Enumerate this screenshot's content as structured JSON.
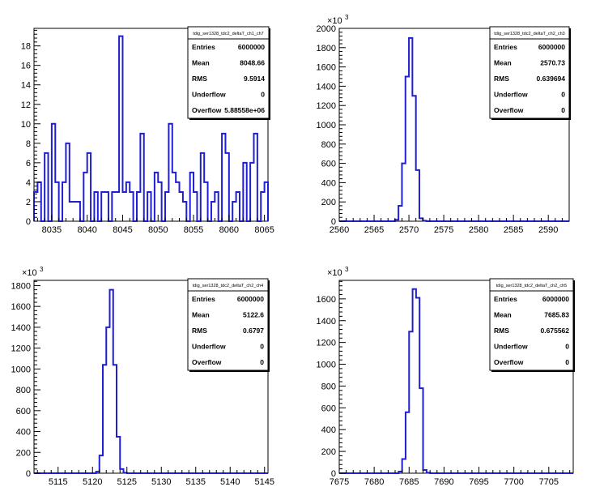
{
  "chart_data": [
    {
      "type": "bar",
      "name": "tdig_ser1328_tdc2_deltaT_ch1_ch7",
      "xlim": [
        8032.5,
        8065.5
      ],
      "ylim": [
        0,
        19.8
      ],
      "xticks": [
        8035,
        8040,
        8045,
        8050,
        8055,
        8060,
        8065
      ],
      "yticks": [
        0,
        2,
        4,
        6,
        8,
        10,
        12,
        14,
        16,
        18
      ],
      "y_multiplier": "",
      "bin_width": 0.5,
      "x": [
        8032.5,
        8033,
        8033.5,
        8034,
        8034.5,
        8035,
        8035.5,
        8036,
        8036.5,
        8037,
        8037.5,
        8038,
        8038.5,
        8039,
        8039.5,
        8040,
        8040.5,
        8041,
        8041.5,
        8042,
        8042.5,
        8043,
        8043.5,
        8044,
        8044.5,
        8045,
        8045.5,
        8046,
        8046.5,
        8047,
        8047.5,
        8048,
        8048.5,
        8049,
        8049.5,
        8050,
        8050.5,
        8051,
        8051.5,
        8052,
        8052.5,
        8053,
        8053.5,
        8054,
        8054.5,
        8055,
        8055.5,
        8056,
        8056.5,
        8057,
        8057.5,
        8058,
        8058.5,
        8059,
        8059.5,
        8060,
        8060.5,
        8061,
        8061.5,
        8062,
        8062.5,
        8063,
        8063.5,
        8064,
        8064.5,
        8065
      ],
      "values": [
        3,
        4,
        0,
        7,
        0,
        10,
        4,
        0,
        4,
        8,
        2,
        2,
        2,
        0,
        5,
        7,
        0,
        3,
        0,
        3,
        3,
        0,
        3,
        3,
        19,
        3,
        4,
        3,
        0,
        3,
        9,
        0,
        3,
        0,
        5,
        4,
        0,
        3,
        10,
        5,
        4,
        3,
        2,
        0,
        5,
        3,
        0,
        7,
        4,
        0,
        2,
        3,
        0,
        9,
        7,
        0,
        2,
        3,
        0,
        6,
        0,
        6,
        9,
        0,
        3,
        4
      ],
      "stats": {
        "title": "tdig_ser1328_tdc2_deltaT_ch1_ch7",
        "rows": [
          {
            "label": "Entries",
            "value": "6000000"
          },
          {
            "label": "Mean",
            "value": "8048.66"
          },
          {
            "label": "RMS",
            "value": "9.5914"
          },
          {
            "label": "Underflow",
            "value": "0"
          },
          {
            "label": "Overflow",
            "value": "5.88558e+06"
          }
        ]
      }
    },
    {
      "type": "bar",
      "name": "tdig_ser1328_tdc2_deltaT_ch2_ch3",
      "xlim": [
        2560,
        2593
      ],
      "ylim": [
        0,
        2000
      ],
      "xticks": [
        2560,
        2565,
        2570,
        2575,
        2580,
        2585,
        2590
      ],
      "yticks": [
        0,
        200,
        400,
        600,
        800,
        1000,
        1200,
        1400,
        1600,
        1800,
        2000
      ],
      "y_multiplier": "10",
      "y_exponent": "3",
      "bin_width": 0.5,
      "x": [
        2568,
        2568.5,
        2569,
        2569.5,
        2570,
        2570.5,
        2571,
        2571.5,
        2572
      ],
      "values": [
        15,
        160,
        600,
        1500,
        1900,
        1300,
        530,
        30,
        5
      ],
      "stats": {
        "title": "tdig_ser1328_tdc2_deltaT_ch2_ch3",
        "rows": [
          {
            "label": "Entries",
            "value": "6000000"
          },
          {
            "label": "Mean",
            "value": "2570.73"
          },
          {
            "label": "RMS",
            "value": "0.639694"
          },
          {
            "label": "Underflow",
            "value": "0"
          },
          {
            "label": "Overflow",
            "value": "0"
          }
        ]
      }
    },
    {
      "type": "bar",
      "name": "tdig_ser1328_tdc2_deltaT_ch2_ch4",
      "xlim": [
        5111.5,
        5145.5
      ],
      "ylim": [
        0,
        1850
      ],
      "xticks": [
        5115,
        5120,
        5125,
        5130,
        5135,
        5140,
        5145
      ],
      "yticks": [
        0,
        200,
        400,
        600,
        800,
        1000,
        1200,
        1400,
        1600,
        1800
      ],
      "y_multiplier": "10",
      "y_exponent": "3",
      "bin_width": 0.5,
      "x": [
        5120.5,
        5121,
        5121.5,
        5122,
        5122.5,
        5123,
        5123.5,
        5124,
        5124.5
      ],
      "values": [
        15,
        170,
        1040,
        1400,
        1760,
        1040,
        350,
        40,
        5
      ],
      "stats": {
        "title": "tdig_ser1328_tdc2_deltaT_ch2_ch4",
        "rows": [
          {
            "label": "Entries",
            "value": "6000000"
          },
          {
            "label": "Mean",
            "value": "5122.6"
          },
          {
            "label": "RMS",
            "value": "0.6797"
          },
          {
            "label": "Underflow",
            "value": "0"
          },
          {
            "label": "Overflow",
            "value": "0"
          }
        ]
      }
    },
    {
      "type": "bar",
      "name": "tdig_ser1328_tdc2_deltaT_ch2_ch5",
      "xlim": [
        7675,
        7708.5
      ],
      "ylim": [
        0,
        1770
      ],
      "xticks": [
        7675,
        7680,
        7685,
        7690,
        7695,
        7700,
        7705
      ],
      "yticks": [
        0,
        200,
        400,
        600,
        800,
        1000,
        1200,
        1400,
        1600
      ],
      "y_multiplier": "10",
      "y_exponent": "3",
      "bin_width": 0.5,
      "x": [
        7683.5,
        7684,
        7684.5,
        7685,
        7685.5,
        7686,
        7686.5,
        7687,
        7687.5
      ],
      "values": [
        15,
        130,
        560,
        1300,
        1690,
        1610,
        780,
        30,
        5
      ],
      "stats": {
        "title": "tdig_ser1328_tdc2_deltaT_ch2_ch5",
        "rows": [
          {
            "label": "Entries",
            "value": "6000000"
          },
          {
            "label": "Mean",
            "value": "7685.83"
          },
          {
            "label": "RMS",
            "value": "0.675562"
          },
          {
            "label": "Underflow",
            "value": "0"
          },
          {
            "label": "Overflow",
            "value": "0"
          }
        ]
      }
    }
  ],
  "colors": {
    "histogram_line": "#1f1fd1",
    "axis": "#000000",
    "background": "#ffffff"
  }
}
